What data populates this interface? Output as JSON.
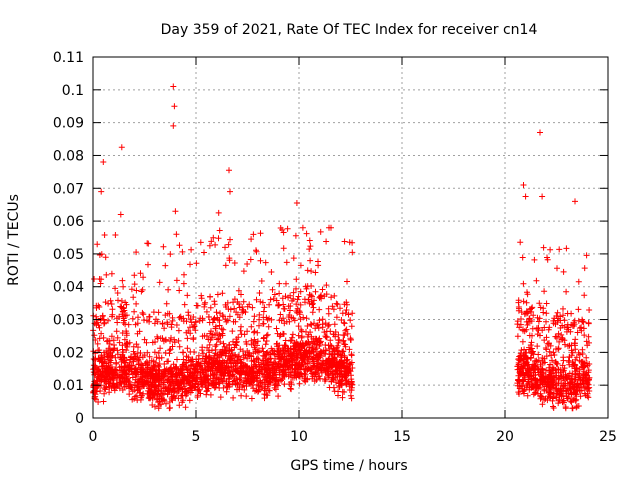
{
  "chart_data": {
    "type": "scatter",
    "title": "Day 359 of 2021, Rate Of TEC Index for receiver cn14",
    "xlabel": "GPS time / hours",
    "ylabel": "ROTI / TECUs",
    "xlim": [
      0,
      25
    ],
    "ylim": [
      0,
      0.11
    ],
    "xticks": [
      0,
      5,
      10,
      15,
      20,
      25
    ],
    "xtick_labels": [
      "0",
      "5",
      "10",
      "15",
      "20",
      "25"
    ],
    "yticks": [
      0,
      0.01,
      0.02,
      0.03,
      0.04,
      0.05,
      0.06,
      0.07,
      0.08,
      0.09,
      0.1,
      0.11
    ],
    "ytick_labels": [
      "0",
      "0.01",
      "0.02",
      "0.03",
      "0.04",
      "0.05",
      "0.06",
      "0.07",
      "0.08",
      "0.09",
      "0.1",
      "0.11"
    ],
    "grid": true,
    "marker": "+",
    "color": "#ff0000",
    "series": [
      {
        "name": "ROTI",
        "segments": [
          {
            "x_range": [
              0,
              12.6
            ],
            "typical_range": [
              0.005,
              0.03
            ]
          },
          {
            "x_range": [
              20.6,
              24.1
            ],
            "typical_range": [
              0.005,
              0.03
            ]
          }
        ],
        "peaks": [
          {
            "x": 0.5,
            "y": 0.078
          },
          {
            "x": 0.4,
            "y": 0.069
          },
          {
            "x": 1.4,
            "y": 0.0825
          },
          {
            "x": 1.35,
            "y": 0.062
          },
          {
            "x": 3.9,
            "y": 0.101
          },
          {
            "x": 3.95,
            "y": 0.095
          },
          {
            "x": 3.9,
            "y": 0.089
          },
          {
            "x": 4.0,
            "y": 0.063
          },
          {
            "x": 4.05,
            "y": 0.056
          },
          {
            "x": 6.1,
            "y": 0.0625
          },
          {
            "x": 6.6,
            "y": 0.0755
          },
          {
            "x": 6.65,
            "y": 0.069
          },
          {
            "x": 9.9,
            "y": 0.0655
          },
          {
            "x": 21.7,
            "y": 0.087
          },
          {
            "x": 20.9,
            "y": 0.071
          },
          {
            "x": 21.0,
            "y": 0.0675
          },
          {
            "x": 21.8,
            "y": 0.0675
          },
          {
            "x": 23.4,
            "y": 0.066
          }
        ]
      }
    ]
  }
}
